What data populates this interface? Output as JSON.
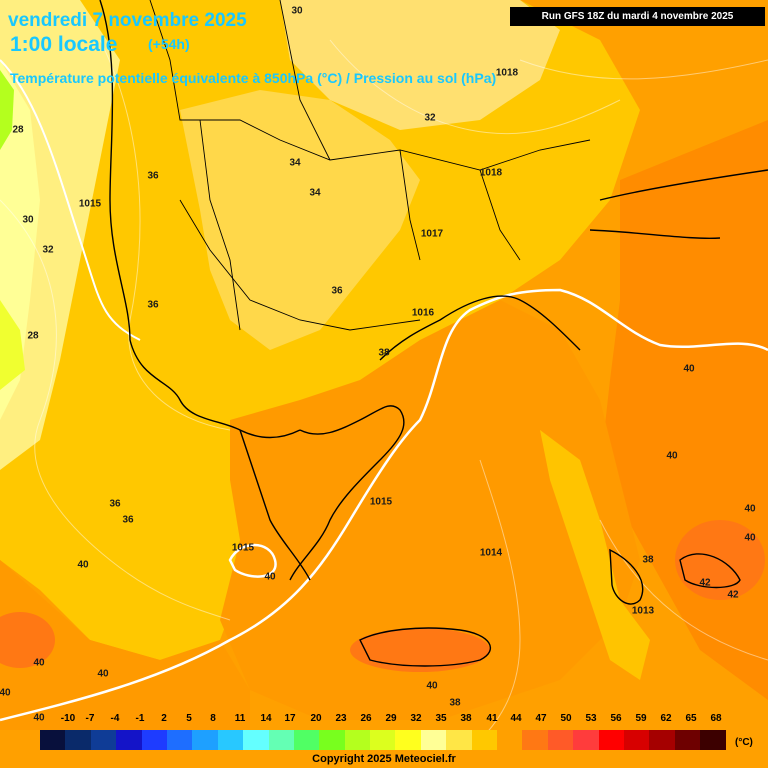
{
  "header": {
    "date_line": "vendredi 7 novembre 2025",
    "time_line": "1:00 locale",
    "lead_time": "(+54h)",
    "product": "Température potentielle équivalente à 850hPa (°C) / Pression au sol (hPa)",
    "run_info": "Run GFS 18Z du mardi 4 novembre 2025"
  },
  "legend": {
    "ticks": [
      "-10",
      "-7",
      "-4",
      "-1",
      "2",
      "5",
      "8",
      "11",
      "14",
      "17",
      "20",
      "23",
      "26",
      "29",
      "32",
      "35",
      "38",
      "41",
      "44",
      "47",
      "50",
      "53",
      "56",
      "59",
      "62",
      "65",
      "68"
    ],
    "colors": [
      "#08103c",
      "#0a2a6a",
      "#0f3c96",
      "#1414c8",
      "#1e3cff",
      "#1e6eff",
      "#1ea0ff",
      "#28c8ff",
      "#64ffff",
      "#64ffb4",
      "#50ff64",
      "#78ff1e",
      "#b4ff1e",
      "#dcff1e",
      "#ffff1e",
      "#ffff96",
      "#ffe646",
      "#ffc800",
      "#ffa000",
      "#ff7814",
      "#ff5a28",
      "#ff3c3c",
      "#ff0000",
      "#d70000",
      "#a50000",
      "#6e0000",
      "#3c0000"
    ],
    "unit": "(°C)"
  },
  "footer": {
    "copyright": "Copyright 2025 Meteociel.fr"
  },
  "map_labels": [
    {
      "text": "30"
    },
    {
      "text": "28"
    },
    {
      "text": "30"
    },
    {
      "text": "32"
    },
    {
      "text": "28"
    },
    {
      "text": "36"
    },
    {
      "text": "1015"
    },
    {
      "text": "36"
    },
    {
      "text": "34"
    },
    {
      "text": "34"
    },
    {
      "text": "32"
    },
    {
      "text": "1018"
    },
    {
      "text": "1018"
    },
    {
      "text": "1017"
    },
    {
      "text": "36"
    },
    {
      "text": "1016"
    },
    {
      "text": "38"
    },
    {
      "text": "40"
    },
    {
      "text": "40"
    },
    {
      "text": "36"
    },
    {
      "text": "36"
    },
    {
      "text": "1015"
    },
    {
      "text": "1015"
    },
    {
      "text": "40"
    },
    {
      "text": "1014"
    },
    {
      "text": "38"
    },
    {
      "text": "1013"
    },
    {
      "text": "40"
    },
    {
      "text": "40"
    },
    {
      "text": "42"
    },
    {
      "text": "42"
    },
    {
      "text": "40"
    },
    {
      "text": "40"
    },
    {
      "text": "40"
    },
    {
      "text": "40"
    },
    {
      "text": "38"
    },
    {
      "text": "40"
    },
    {
      "text": "40"
    }
  ]
}
